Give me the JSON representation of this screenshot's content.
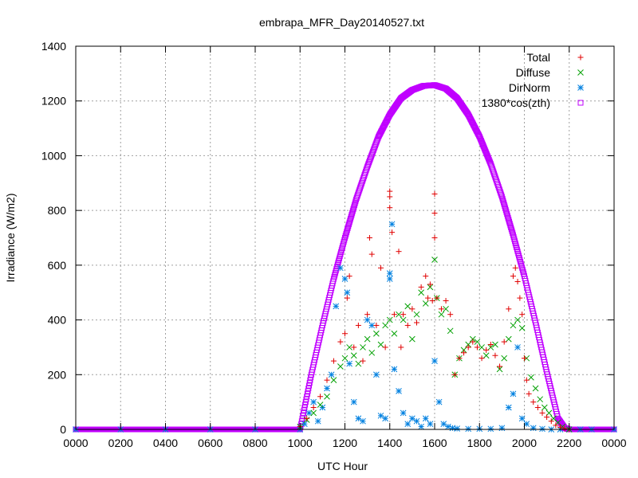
{
  "chart_data": {
    "type": "scatter",
    "title": "embrapa_MFR_Day20140527.txt",
    "xlabel": "UTC Hour",
    "ylabel": "Irradiance (W/m2)",
    "xlim": [
      0,
      24
    ],
    "ylim": [
      0,
      1400
    ],
    "grid": true,
    "legend_position": "top-right",
    "x_ticks": [
      {
        "value": 0,
        "label": "0000"
      },
      {
        "value": 2,
        "label": "0200"
      },
      {
        "value": 4,
        "label": "0400"
      },
      {
        "value": 6,
        "label": "0600"
      },
      {
        "value": 8,
        "label": "0800"
      },
      {
        "value": 10,
        "label": "1000"
      },
      {
        "value": 12,
        "label": "1200"
      },
      {
        "value": 14,
        "label": "1400"
      },
      {
        "value": 16,
        "label": "1600"
      },
      {
        "value": 18,
        "label": "1800"
      },
      {
        "value": 20,
        "label": "2000"
      },
      {
        "value": 22,
        "label": "2200"
      },
      {
        "value": 24,
        "label": "0000"
      }
    ],
    "y_ticks": [
      {
        "value": 0,
        "label": "0"
      },
      {
        "value": 200,
        "label": "200"
      },
      {
        "value": 400,
        "label": "400"
      },
      {
        "value": 600,
        "label": "600"
      },
      {
        "value": 800,
        "label": "800"
      },
      {
        "value": 1000,
        "label": "1000"
      },
      {
        "value": 1200,
        "label": "1200"
      },
      {
        "value": 1400,
        "label": "1400"
      }
    ],
    "series": [
      {
        "name": "Total",
        "marker": "plus",
        "color": "#e00000",
        "x": [
          10.0,
          10.3,
          10.6,
          10.9,
          11.2,
          11.5,
          11.8,
          12.0,
          12.1,
          12.2,
          12.4,
          12.6,
          12.8,
          13.0,
          13.1,
          13.2,
          13.4,
          13.6,
          13.8,
          14.0,
          14.0,
          14.0,
          14.1,
          14.2,
          14.4,
          14.5,
          14.6,
          14.8,
          15.0,
          15.2,
          15.4,
          15.6,
          15.7,
          15.8,
          15.9,
          16.0,
          16.0,
          16.0,
          16.1,
          16.3,
          16.5,
          16.7,
          16.9,
          17.1,
          17.3,
          17.5,
          17.7,
          17.9,
          18.1,
          18.3,
          18.5,
          18.7,
          18.9,
          19.1,
          19.3,
          19.5,
          19.6,
          19.7,
          19.8,
          19.9,
          20.0,
          20.1,
          20.2,
          20.4,
          20.6,
          20.8,
          21.0,
          21.2,
          21.4,
          21.6,
          21.8,
          22.0
        ],
        "y": [
          10,
          40,
          80,
          120,
          180,
          250,
          320,
          350,
          480,
          560,
          300,
          380,
          250,
          420,
          700,
          640,
          380,
          590,
          300,
          870,
          850,
          810,
          720,
          420,
          650,
          300,
          420,
          380,
          440,
          390,
          520,
          560,
          480,
          530,
          470,
          860,
          790,
          700,
          480,
          440,
          470,
          420,
          200,
          260,
          280,
          300,
          320,
          300,
          260,
          290,
          310,
          270,
          230,
          320,
          440,
          560,
          590,
          540,
          480,
          420,
          260,
          180,
          130,
          100,
          80,
          60,
          45,
          30,
          15,
          8,
          3,
          0
        ]
      },
      {
        "name": "Diffuse",
        "marker": "cross",
        "color": "#00a000",
        "x": [
          10.0,
          10.3,
          10.6,
          10.9,
          11.2,
          11.5,
          11.8,
          12.0,
          12.2,
          12.4,
          12.6,
          12.8,
          13.0,
          13.2,
          13.4,
          13.6,
          13.8,
          14.0,
          14.2,
          14.4,
          14.6,
          14.8,
          15.0,
          15.2,
          15.4,
          15.6,
          15.8,
          16.0,
          16.1,
          16.3,
          16.5,
          16.7,
          16.9,
          17.1,
          17.3,
          17.5,
          17.7,
          17.9,
          18.1,
          18.3,
          18.5,
          18.7,
          18.9,
          19.1,
          19.3,
          19.5,
          19.7,
          19.9,
          20.1,
          20.3,
          20.5,
          20.7,
          20.9,
          21.1,
          21.3,
          21.5,
          21.7,
          22.0
        ],
        "y": [
          10,
          35,
          60,
          90,
          120,
          180,
          230,
          260,
          300,
          270,
          240,
          300,
          330,
          280,
          350,
          310,
          380,
          400,
          350,
          420,
          400,
          450,
          330,
          420,
          500,
          460,
          520,
          620,
          480,
          420,
          440,
          360,
          200,
          260,
          290,
          310,
          330,
          320,
          300,
          270,
          300,
          310,
          220,
          260,
          330,
          380,
          400,
          370,
          260,
          190,
          150,
          110,
          80,
          60,
          40,
          25,
          10,
          0
        ]
      },
      {
        "name": "DirNorm",
        "marker": "star",
        "color": "#0080e0",
        "x": [
          0,
          2,
          4,
          6,
          8,
          10.0,
          10.2,
          10.4,
          10.6,
          10.8,
          11.0,
          11.2,
          11.4,
          11.6,
          11.8,
          12.0,
          12.1,
          12.2,
          12.4,
          12.6,
          12.8,
          13.0,
          13.2,
          13.4,
          13.6,
          13.8,
          14.0,
          14.0,
          14.1,
          14.2,
          14.4,
          14.6,
          14.8,
          15.0,
          15.2,
          15.4,
          15.6,
          15.8,
          16.0,
          16.2,
          16.4,
          16.6,
          16.8,
          17.0,
          17.5,
          18.0,
          18.5,
          19.0,
          19.3,
          19.5,
          19.7,
          19.9,
          20.1,
          20.4,
          20.8,
          21.2,
          21.6,
          22.0,
          22.5,
          23.0,
          24.0
        ],
        "y": [
          0,
          0,
          0,
          0,
          0,
          0,
          20,
          60,
          100,
          30,
          80,
          150,
          200,
          450,
          590,
          550,
          500,
          240,
          100,
          40,
          30,
          400,
          380,
          200,
          50,
          40,
          570,
          550,
          750,
          220,
          140,
          60,
          20,
          40,
          30,
          10,
          40,
          20,
          250,
          100,
          20,
          10,
          5,
          3,
          2,
          2,
          2,
          5,
          80,
          130,
          300,
          40,
          20,
          5,
          2,
          0,
          0,
          0,
          0,
          0,
          0
        ]
      },
      {
        "name": "1380*cos(zth)",
        "marker": "square",
        "color": "#c000ff",
        "type_hint": "cosine envelope peaking near 1600 UTC",
        "x": [
          0,
          2,
          4,
          6,
          8,
          9.5,
          10.0,
          10.1,
          10.5,
          11.0,
          11.5,
          12.0,
          12.5,
          13.0,
          13.5,
          14.0,
          14.5,
          15.0,
          15.5,
          16.0,
          16.5,
          17.0,
          17.5,
          18.0,
          18.5,
          19.0,
          19.5,
          20.0,
          20.5,
          21.0,
          21.5,
          21.8,
          22.0,
          22.2,
          23.0,
          24.0
        ],
        "y": [
          0,
          0,
          0,
          0,
          0,
          0,
          0,
          40,
          200,
          380,
          550,
          700,
          840,
          960,
          1070,
          1150,
          1210,
          1240,
          1255,
          1258,
          1245,
          1210,
          1150,
          1070,
          970,
          850,
          710,
          560,
          390,
          210,
          40,
          5,
          0,
          0,
          0,
          0
        ]
      }
    ]
  }
}
